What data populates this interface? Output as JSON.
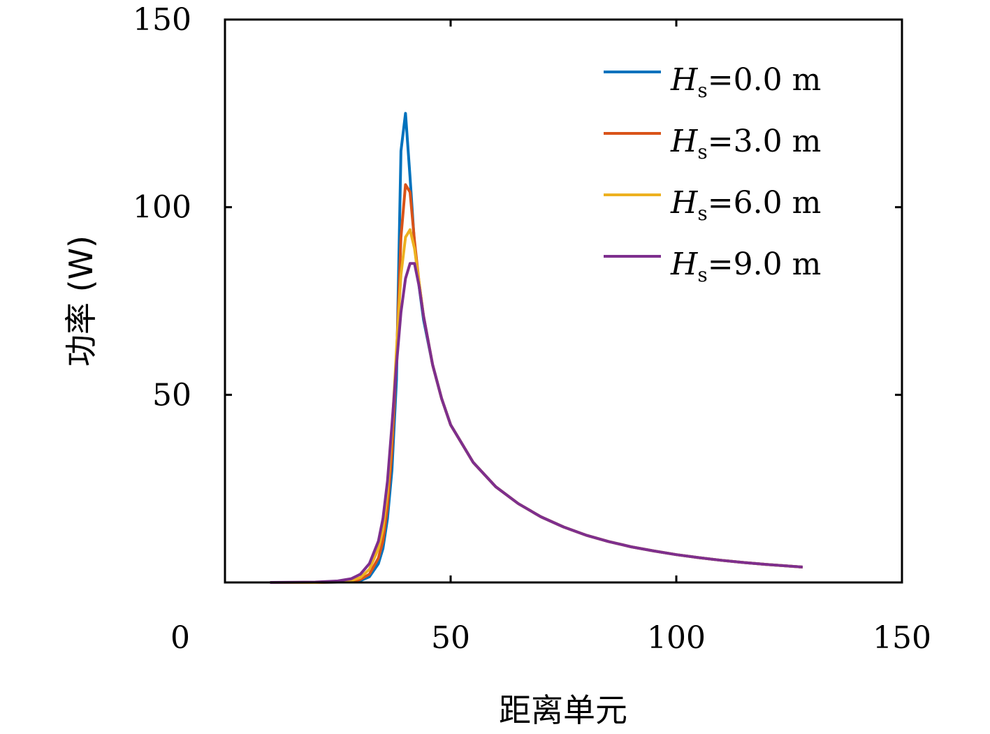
{
  "chart_data": {
    "type": "line",
    "title": "",
    "xlabel": "距离单元",
    "ylabel": "功率 (W)",
    "xlim": [
      0,
      150
    ],
    "ylim": [
      0,
      150
    ],
    "xticks": [
      "0",
      "50",
      "100",
      "150"
    ],
    "yticks": [
      "50",
      "100",
      "150"
    ],
    "grid": false,
    "legend_position": "top-right",
    "legend_symbol": "H",
    "legend_subscript": "s",
    "series": [
      {
        "name": "=0.0 m",
        "color": "#0072bd",
        "x": [
          10,
          20,
          25,
          28,
          30,
          32,
          34,
          35,
          36,
          37,
          38,
          39,
          40,
          41,
          42,
          43,
          44,
          46,
          48,
          50,
          55,
          60,
          65,
          70,
          75,
          80,
          85,
          90,
          95,
          100,
          105,
          110,
          115,
          120,
          128
        ],
        "y": [
          0,
          0,
          0.1,
          0.2,
          0.5,
          1.5,
          5,
          9,
          17,
          30,
          54,
          115,
          125,
          108,
          90,
          79,
          70,
          58,
          49,
          42,
          32,
          25.5,
          21,
          17.5,
          14.8,
          12.6,
          10.9,
          9.5,
          8.4,
          7.4,
          6.6,
          5.9,
          5.3,
          4.8,
          4.1
        ]
      },
      {
        "name": "=3.0 m",
        "color": "#d95319",
        "x": [
          10,
          20,
          25,
          28,
          30,
          32,
          34,
          35,
          36,
          37,
          38,
          39,
          40,
          41,
          42,
          43,
          44,
          46,
          48,
          50,
          55,
          60,
          65,
          70,
          75,
          80,
          85,
          90,
          95,
          100,
          105,
          110,
          115,
          120,
          128
        ],
        "y": [
          0,
          0,
          0.1,
          0.3,
          0.8,
          2.2,
          6.5,
          11,
          20,
          35,
          60,
          92,
          106,
          104,
          91,
          80,
          71,
          58,
          49,
          42,
          32,
          25.5,
          21,
          17.5,
          14.8,
          12.6,
          10.9,
          9.5,
          8.4,
          7.4,
          6.6,
          5.9,
          5.3,
          4.8,
          4.1
        ]
      },
      {
        "name": "=6.0 m",
        "color": "#edb120",
        "x": [
          10,
          20,
          25,
          28,
          30,
          32,
          34,
          35,
          36,
          37,
          38,
          39,
          40,
          41,
          42,
          43,
          44,
          46,
          48,
          50,
          55,
          60,
          65,
          70,
          75,
          80,
          85,
          90,
          95,
          100,
          105,
          110,
          115,
          120,
          128
        ],
        "y": [
          0,
          0,
          0.2,
          0.5,
          1.3,
          3.5,
          9,
          14,
          24,
          40,
          62,
          82,
          92,
          94,
          89,
          80,
          71,
          58,
          49,
          42,
          32,
          25.5,
          21,
          17.5,
          14.8,
          12.6,
          10.9,
          9.5,
          8.4,
          7.4,
          6.6,
          5.9,
          5.3,
          4.8,
          4.1
        ]
      },
      {
        "name": "=9.0 m",
        "color": "#7e2f8e",
        "x": [
          10,
          20,
          25,
          28,
          30,
          32,
          34,
          35,
          36,
          37,
          38,
          39,
          40,
          41,
          42,
          43,
          44,
          46,
          48,
          50,
          55,
          60,
          65,
          70,
          75,
          80,
          85,
          90,
          95,
          100,
          105,
          110,
          115,
          120,
          128
        ],
        "y": [
          0,
          0.1,
          0.4,
          1.0,
          2.2,
          5,
          11,
          17,
          27,
          42,
          58,
          72,
          81,
          85,
          85,
          79,
          71,
          58,
          49,
          42,
          32,
          25.5,
          21,
          17.5,
          14.8,
          12.6,
          10.9,
          9.5,
          8.4,
          7.4,
          6.6,
          5.9,
          5.3,
          4.8,
          4.1
        ]
      }
    ]
  }
}
